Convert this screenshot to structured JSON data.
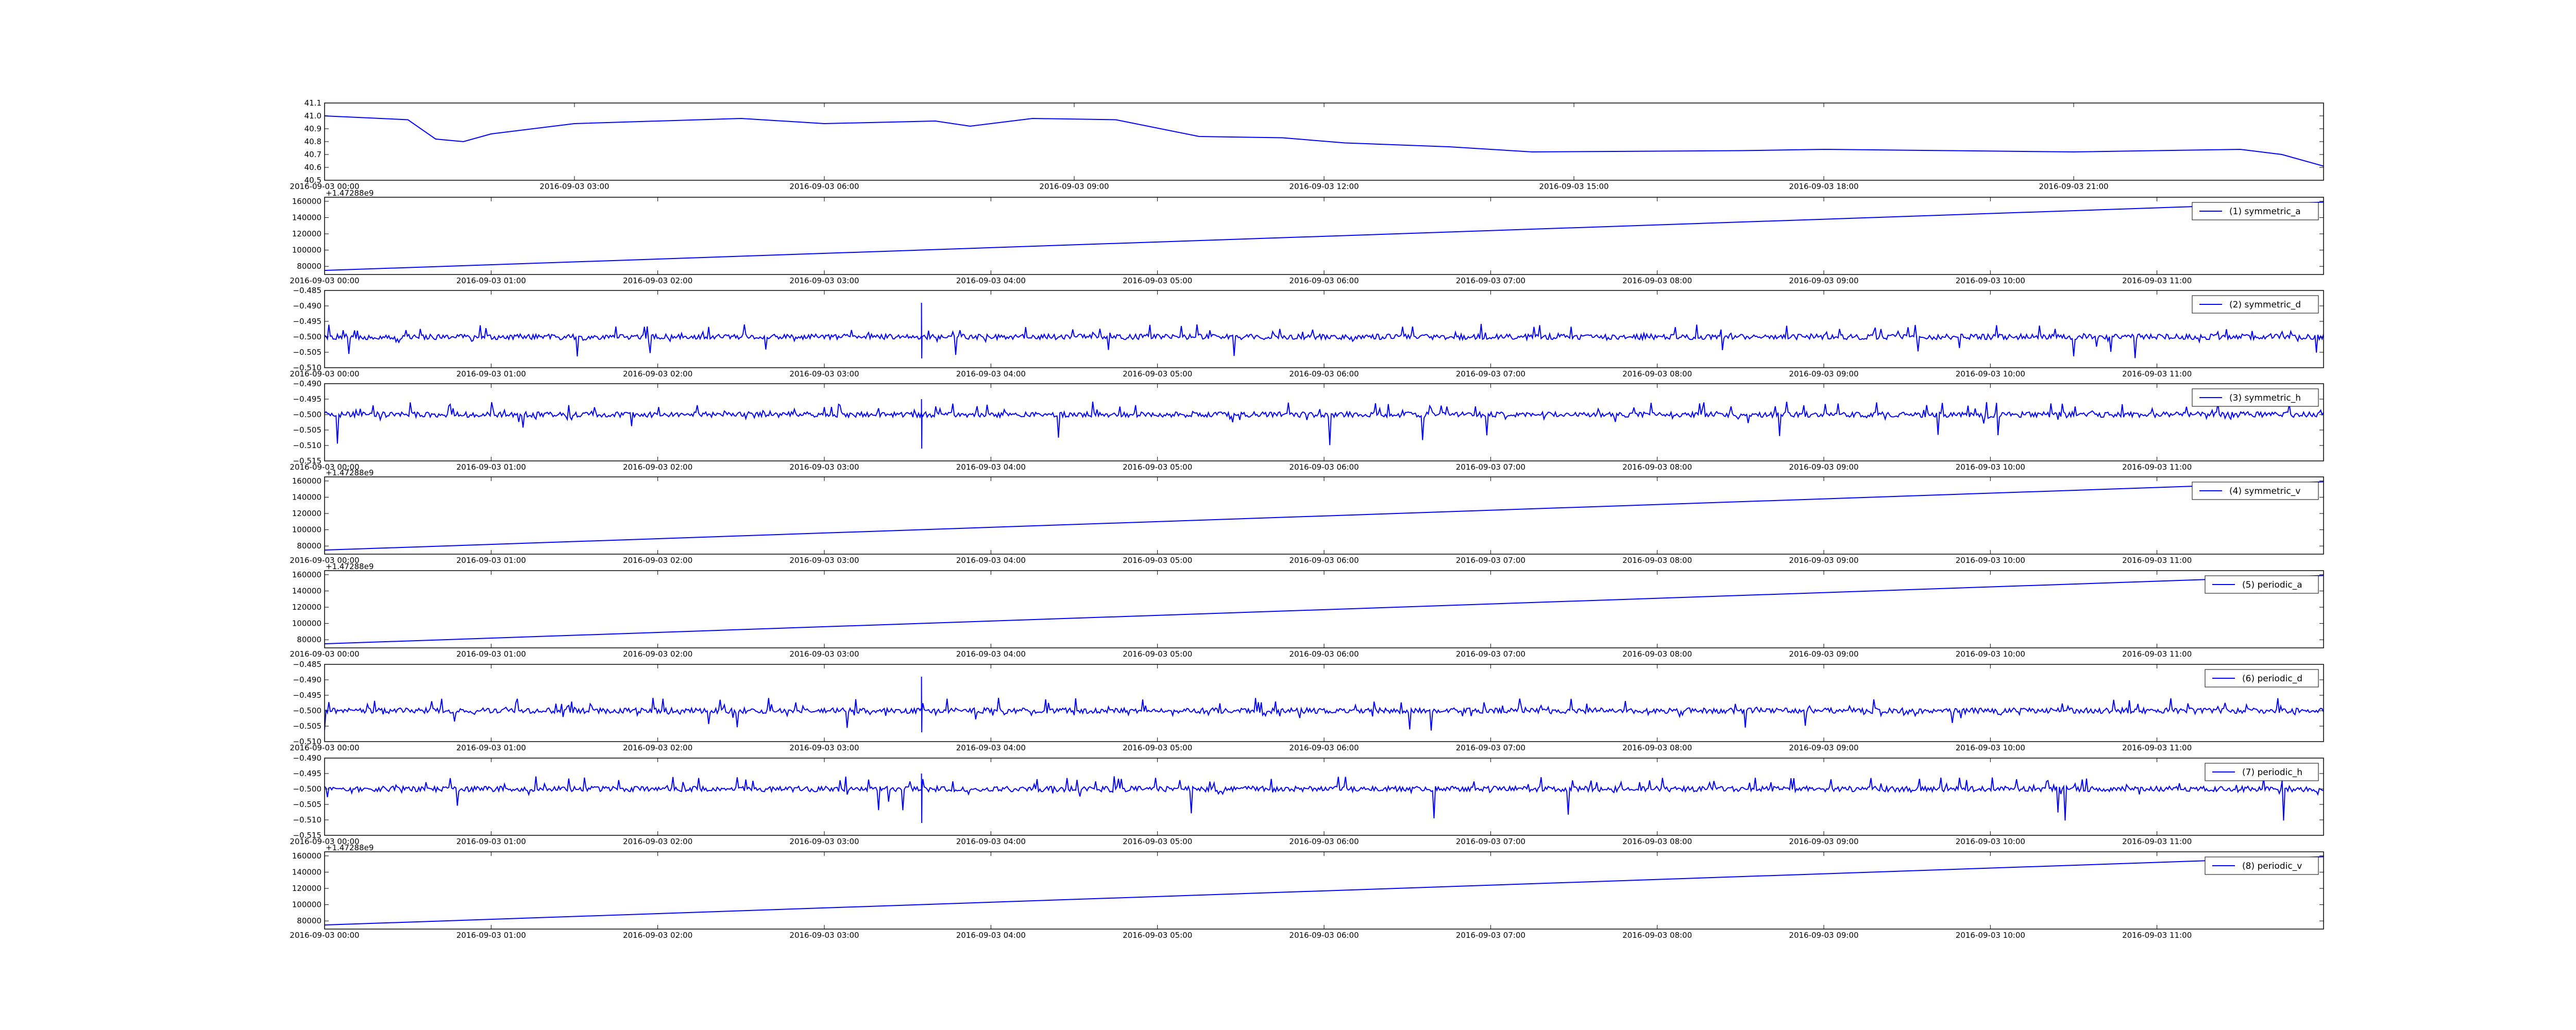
{
  "chart_data": [
    {
      "type": "line",
      "title": "",
      "xlabel": "",
      "ylabel": "",
      "legend": "",
      "legend_placement": "none",
      "grid": false,
      "color": "#0000ff",
      "x_type": "datetime",
      "xlim": [
        "2016-09-03 00:00",
        "2016-09-04 00:00"
      ],
      "x_ticks": [
        "2016-09-03 00:00",
        "2016-09-03 03:00",
        "2016-09-03 06:00",
        "2016-09-03 09:00",
        "2016-09-03 12:00",
        "2016-09-03 15:00",
        "2016-09-03 18:00",
        "2016-09-03 21:00"
      ],
      "ylim": [
        40.5,
        41.1
      ],
      "y_ticks": [
        "40.5",
        "40.6",
        "40.7",
        "40.8",
        "40.9",
        "41.0",
        "41.1"
      ],
      "offset_text": "",
      "points": [
        [
          "2016-09-03 00:00",
          41.0
        ],
        [
          "2016-09-03 01:00",
          40.97
        ],
        [
          "2016-09-03 01:20",
          40.82
        ],
        [
          "2016-09-03 01:40",
          40.8
        ],
        [
          "2016-09-03 02:00",
          40.86
        ],
        [
          "2016-09-03 03:00",
          40.94
        ],
        [
          "2016-09-03 05:00",
          40.98
        ],
        [
          "2016-09-03 06:00",
          40.94
        ],
        [
          "2016-09-03 07:20",
          40.96
        ],
        [
          "2016-09-03 07:45",
          40.92
        ],
        [
          "2016-09-03 08:30",
          40.98
        ],
        [
          "2016-09-03 09:30",
          40.97
        ],
        [
          "2016-09-03 10:30",
          40.84
        ],
        [
          "2016-09-03 11:30",
          40.83
        ],
        [
          "2016-09-03 12:15",
          40.79
        ],
        [
          "2016-09-03 13:30",
          40.76
        ],
        [
          "2016-09-03 14:30",
          40.72
        ],
        [
          "2016-09-03 17:00",
          40.73
        ],
        [
          "2016-09-03 18:00",
          40.74
        ],
        [
          "2016-09-03 21:00",
          40.72
        ],
        [
          "2016-09-03 23:00",
          40.74
        ],
        [
          "2016-09-03 23:30",
          40.7
        ],
        [
          "2016-09-04 00:00",
          40.61
        ]
      ]
    },
    {
      "type": "line",
      "title": "",
      "xlabel": "",
      "ylabel": "",
      "grid": false,
      "color": "#0000ff",
      "legend": "(1) symmetric_a",
      "legend_placement": "top-right",
      "x_type": "datetime",
      "xlim": [
        "2016-09-03 00:00",
        "2016-09-03 12:00"
      ],
      "x_ticks": [
        "2016-09-03 00:00",
        "2016-09-03 01:00",
        "2016-09-03 02:00",
        "2016-09-03 03:00",
        "2016-09-03 04:00",
        "2016-09-03 05:00",
        "2016-09-03 06:00",
        "2016-09-03 07:00",
        "2016-09-03 08:00",
        "2016-09-03 09:00",
        "2016-09-03 10:00",
        "2016-09-03 11:00"
      ],
      "ylim": [
        70000,
        165000
      ],
      "y_ticks": [
        "80000",
        "100000",
        "120000",
        "140000",
        "160000"
      ],
      "offset_text": "+1.47288e9",
      "points": [
        [
          "2016-09-03 00:00",
          75000
        ],
        [
          "2016-09-03 12:00",
          159000
        ]
      ]
    },
    {
      "type": "line",
      "title": "",
      "xlabel": "",
      "ylabel": "",
      "grid": false,
      "color": "#0000ff",
      "legend": "(2) symmetric_d",
      "legend_placement": "top-right",
      "x_type": "datetime",
      "xlim": [
        "2016-09-03 00:00",
        "2016-09-03 12:00"
      ],
      "x_ticks": [
        "2016-09-03 00:00",
        "2016-09-03 01:00",
        "2016-09-03 02:00",
        "2016-09-03 03:00",
        "2016-09-03 04:00",
        "2016-09-03 05:00",
        "2016-09-03 06:00",
        "2016-09-03 07:00",
        "2016-09-03 08:00",
        "2016-09-03 09:00",
        "2016-09-03 10:00",
        "2016-09-03 11:00"
      ],
      "ylim": [
        -0.51,
        -0.485
      ],
      "y_ticks": [
        "−0.510",
        "−0.505",
        "−0.500",
        "−0.495",
        "−0.490",
        "−0.485"
      ],
      "offset_text": "",
      "baseline": -0.5,
      "noise_amplitude": 0.005,
      "max_value": -0.489,
      "min_value": -0.507,
      "spike_time": "2016-09-03 03:35"
    },
    {
      "type": "line",
      "title": "",
      "xlabel": "",
      "ylabel": "",
      "grid": false,
      "color": "#0000ff",
      "legend": "(3) symmetric_h",
      "legend_placement": "top-right",
      "x_type": "datetime",
      "xlim": [
        "2016-09-03 00:00",
        "2016-09-03 12:00"
      ],
      "x_ticks": [
        "2016-09-03 00:00",
        "2016-09-03 01:00",
        "2016-09-03 02:00",
        "2016-09-03 03:00",
        "2016-09-03 04:00",
        "2016-09-03 05:00",
        "2016-09-03 06:00",
        "2016-09-03 07:00",
        "2016-09-03 08:00",
        "2016-09-03 09:00",
        "2016-09-03 10:00",
        "2016-09-03 11:00"
      ],
      "ylim": [
        -0.515,
        -0.49
      ],
      "y_ticks": [
        "−0.515",
        "−0.510",
        "−0.505",
        "−0.500",
        "−0.495",
        "−0.490"
      ],
      "offset_text": "",
      "baseline": -0.5,
      "noise_amplitude": 0.005,
      "max_value": -0.495,
      "min_value": -0.511,
      "spike_time": "2016-09-03 03:35"
    },
    {
      "type": "line",
      "title": "",
      "xlabel": "",
      "ylabel": "",
      "grid": false,
      "color": "#0000ff",
      "legend": "(4) symmetric_v",
      "legend_placement": "top-right",
      "x_type": "datetime",
      "xlim": [
        "2016-09-03 00:00",
        "2016-09-03 12:00"
      ],
      "x_ticks": [
        "2016-09-03 00:00",
        "2016-09-03 01:00",
        "2016-09-03 02:00",
        "2016-09-03 03:00",
        "2016-09-03 04:00",
        "2016-09-03 05:00",
        "2016-09-03 06:00",
        "2016-09-03 07:00",
        "2016-09-03 08:00",
        "2016-09-03 09:00",
        "2016-09-03 10:00",
        "2016-09-03 11:00"
      ],
      "ylim": [
        70000,
        165000
      ],
      "y_ticks": [
        "80000",
        "100000",
        "120000",
        "140000",
        "160000"
      ],
      "offset_text": "+1.47288e9",
      "points": [
        [
          "2016-09-03 00:00",
          75000
        ],
        [
          "2016-09-03 12:00",
          159000
        ]
      ]
    },
    {
      "type": "line",
      "title": "",
      "xlabel": "",
      "ylabel": "",
      "grid": false,
      "color": "#0000ff",
      "legend": "(5) periodic_a",
      "legend_placement": "top-right",
      "x_type": "datetime",
      "xlim": [
        "2016-09-03 00:00",
        "2016-09-03 12:00"
      ],
      "x_ticks": [
        "2016-09-03 00:00",
        "2016-09-03 01:00",
        "2016-09-03 02:00",
        "2016-09-03 03:00",
        "2016-09-03 04:00",
        "2016-09-03 05:00",
        "2016-09-03 06:00",
        "2016-09-03 07:00",
        "2016-09-03 08:00",
        "2016-09-03 09:00",
        "2016-09-03 10:00",
        "2016-09-03 11:00"
      ],
      "ylim": [
        70000,
        165000
      ],
      "y_ticks": [
        "80000",
        "100000",
        "120000",
        "140000",
        "160000"
      ],
      "offset_text": "+1.47288e9",
      "points": [
        [
          "2016-09-03 00:00",
          75000
        ],
        [
          "2016-09-03 12:00",
          159000
        ]
      ]
    },
    {
      "type": "line",
      "title": "",
      "xlabel": "",
      "ylabel": "",
      "grid": false,
      "color": "#0000ff",
      "legend": "(6) periodic_d",
      "legend_placement": "top-right",
      "x_type": "datetime",
      "xlim": [
        "2016-09-03 00:00",
        "2016-09-03 12:00"
      ],
      "x_ticks": [
        "2016-09-03 00:00",
        "2016-09-03 01:00",
        "2016-09-03 02:00",
        "2016-09-03 03:00",
        "2016-09-03 04:00",
        "2016-09-03 05:00",
        "2016-09-03 06:00",
        "2016-09-03 07:00",
        "2016-09-03 08:00",
        "2016-09-03 09:00",
        "2016-09-03 10:00",
        "2016-09-03 11:00"
      ],
      "ylim": [
        -0.51,
        -0.485
      ],
      "y_ticks": [
        "−0.510",
        "−0.505",
        "−0.500",
        "−0.495",
        "−0.490",
        "−0.485"
      ],
      "offset_text": "",
      "baseline": -0.5,
      "noise_amplitude": 0.005,
      "max_value": -0.489,
      "min_value": -0.507,
      "spike_time": "2016-09-03 03:35"
    },
    {
      "type": "line",
      "title": "",
      "xlabel": "",
      "ylabel": "",
      "grid": false,
      "color": "#0000ff",
      "legend": "(7) periodic_h",
      "legend_placement": "top-right",
      "x_type": "datetime",
      "xlim": [
        "2016-09-03 00:00",
        "2016-09-03 12:00"
      ],
      "x_ticks": [
        "2016-09-03 00:00",
        "2016-09-03 01:00",
        "2016-09-03 02:00",
        "2016-09-03 03:00",
        "2016-09-03 04:00",
        "2016-09-03 05:00",
        "2016-09-03 06:00",
        "2016-09-03 07:00",
        "2016-09-03 08:00",
        "2016-09-03 09:00",
        "2016-09-03 10:00",
        "2016-09-03 11:00"
      ],
      "ylim": [
        -0.515,
        -0.49
      ],
      "y_ticks": [
        "−0.515",
        "−0.510",
        "−0.505",
        "−0.500",
        "−0.495",
        "−0.490"
      ],
      "offset_text": "",
      "baseline": -0.5,
      "noise_amplitude": 0.005,
      "max_value": -0.495,
      "min_value": -0.511,
      "spike_time": "2016-09-03 03:35"
    },
    {
      "type": "line",
      "title": "",
      "xlabel": "",
      "ylabel": "",
      "grid": false,
      "color": "#0000ff",
      "legend": "(8) periodic_v",
      "legend_placement": "top-right",
      "x_type": "datetime",
      "xlim": [
        "2016-09-03 00:00",
        "2016-09-03 12:00"
      ],
      "x_ticks": [
        "2016-09-03 00:00",
        "2016-09-03 01:00",
        "2016-09-03 02:00",
        "2016-09-03 03:00",
        "2016-09-03 04:00",
        "2016-09-03 05:00",
        "2016-09-03 06:00",
        "2016-09-03 07:00",
        "2016-09-03 08:00",
        "2016-09-03 09:00",
        "2016-09-03 10:00",
        "2016-09-03 11:00"
      ],
      "ylim": [
        70000,
        165000
      ],
      "y_ticks": [
        "80000",
        "100000",
        "120000",
        "140000",
        "160000"
      ],
      "offset_text": "+1.47288e9",
      "points": [
        [
          "2016-09-03 00:00",
          75000
        ],
        [
          "2016-09-03 12:00",
          159000
        ]
      ]
    }
  ]
}
